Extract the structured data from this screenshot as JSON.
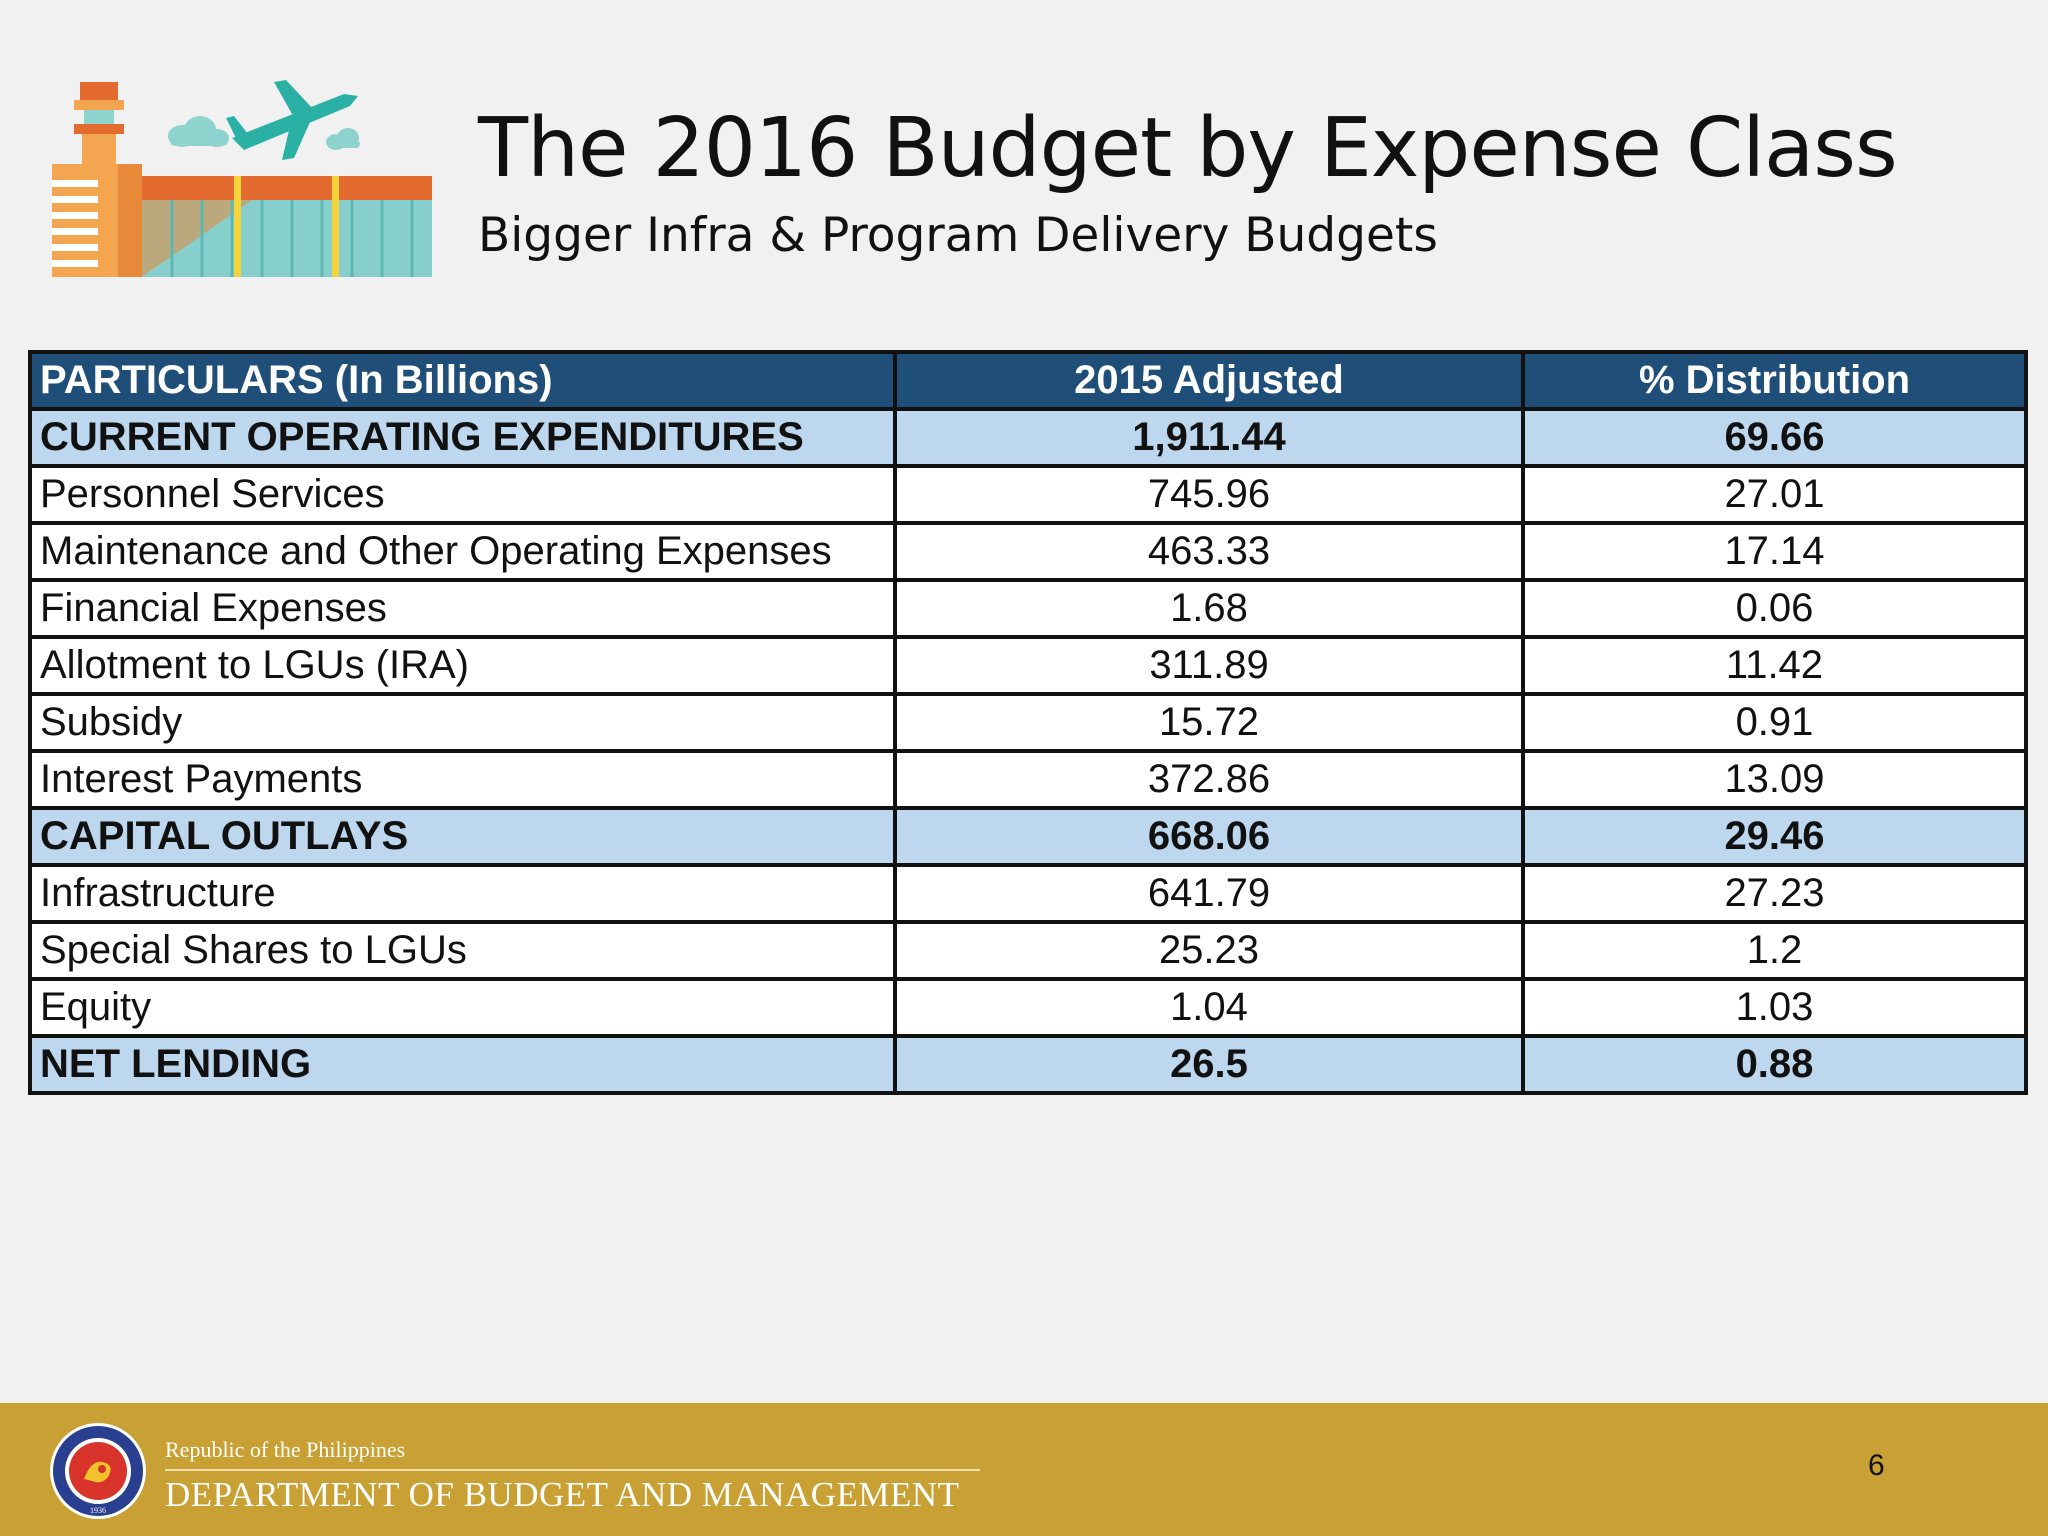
{
  "slide": {
    "title": "The 2016 Budget by Expense Class",
    "subtitle": "Bigger Infra & Program Delivery Budgets",
    "page_number": "6"
  },
  "table": {
    "headers": [
      "PARTICULARS (In Billions)",
      "2015 Adjusted",
      "% Distribution"
    ],
    "rows": [
      {
        "label": "CURRENT OPERATING EXPENDITURES",
        "adjusted": "1,911.44",
        "distribution": "69.66"
      },
      {
        "label": "Personnel Services",
        "adjusted": "745.96",
        "distribution": "27.01"
      },
      {
        "label": "Maintenance and Other Operating Expenses",
        "adjusted": "463.33",
        "distribution": "17.14"
      },
      {
        "label": "Financial Expenses",
        "adjusted": "1.68",
        "distribution": "0.06"
      },
      {
        "label": "Allotment to LGUs (IRA)",
        "adjusted": "311.89",
        "distribution": "11.42"
      },
      {
        "label": "Subsidy",
        "adjusted": "15.72",
        "distribution": "0.91"
      },
      {
        "label": "Interest Payments",
        "adjusted": "372.86",
        "distribution": "13.09"
      },
      {
        "label": "CAPITAL OUTLAYS",
        "adjusted": "668.06",
        "distribution": "29.46"
      },
      {
        "label": "Infrastructure",
        "adjusted": "641.79",
        "distribution": "27.23"
      },
      {
        "label": "Special Shares to LGUs",
        "adjusted": "25.23",
        "distribution": "1.2"
      },
      {
        "label": "Equity",
        "adjusted": "1.04",
        "distribution": "1.03"
      },
      {
        "label": "NET LENDING",
        "adjusted": "26.5",
        "distribution": "0.88"
      }
    ]
  },
  "footer": {
    "republic": "Republic of the Philippines",
    "department": "DEPARTMENT OF BUDGET AND MANAGEMENT",
    "seal_year": "1936"
  },
  "colors": {
    "header_bg": "#1f4e79",
    "highlight_row_bg": "#bdd7ee",
    "footer_bg": "#c9a033",
    "slide_bg": "#f2f1f1"
  },
  "icons": {
    "illustration": "airport-terminal-illustration",
    "seal": "dbm-seal-icon"
  }
}
